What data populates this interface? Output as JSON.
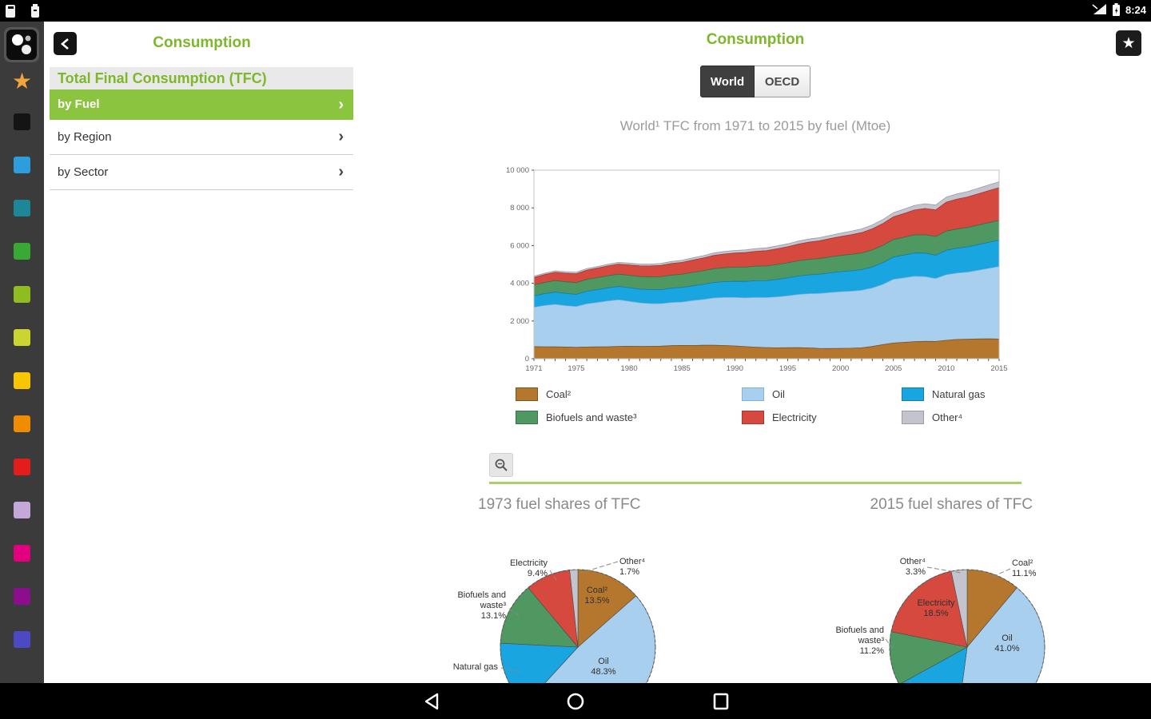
{
  "status_bar": {
    "time": "8:24"
  },
  "nav_rail": {
    "items": [
      {
        "name": "app-icon",
        "kind": "app",
        "color": "#0c0c0c"
      },
      {
        "name": "favorites-star",
        "kind": "star",
        "color": "#f2a33c"
      },
      {
        "name": "shortcut-black",
        "kind": "square",
        "color": "#141414"
      },
      {
        "name": "shortcut-blue",
        "kind": "square",
        "color": "#2d9ddb"
      },
      {
        "name": "shortcut-teal",
        "kind": "square",
        "color": "#1d8798"
      },
      {
        "name": "shortcut-green",
        "kind": "square",
        "color": "#39a935"
      },
      {
        "name": "shortcut-olive",
        "kind": "square",
        "color": "#8fbc20"
      },
      {
        "name": "shortcut-lime",
        "kind": "square",
        "color": "#cbd532"
      },
      {
        "name": "shortcut-yellow",
        "kind": "square",
        "color": "#f7c600"
      },
      {
        "name": "shortcut-orange",
        "kind": "square",
        "color": "#f08c00"
      },
      {
        "name": "shortcut-red",
        "kind": "square",
        "color": "#e51c1c"
      },
      {
        "name": "shortcut-lavender",
        "kind": "square",
        "color": "#c3a8d9"
      },
      {
        "name": "shortcut-magenta",
        "kind": "square",
        "color": "#e2007f"
      },
      {
        "name": "shortcut-purple",
        "kind": "square",
        "color": "#8c0e8c"
      },
      {
        "name": "shortcut-indigo",
        "kind": "square",
        "color": "#4d49c3"
      }
    ]
  },
  "left_panel": {
    "title": "Consumption",
    "section": "Total Final Consumption (TFC)",
    "items": [
      {
        "label": "by Fuel",
        "selected": true
      },
      {
        "label": "by Region",
        "selected": false
      },
      {
        "label": "by Sector",
        "selected": false
      }
    ]
  },
  "main": {
    "title": "Consumption",
    "toggle": {
      "options": [
        "World",
        "OECD"
      ],
      "selected": "World"
    }
  },
  "colors": {
    "accent_green": "#7cb829",
    "selected_row_green": "#8bc53f",
    "divider_green": "#a9d164"
  },
  "chart_data": [
    {
      "type": "area",
      "stacked": true,
      "title": "World¹ TFC from 1971 to 2015 by fuel (Mtoe)",
      "ylabel": "Mtoe",
      "ylim": [
        0,
        10000
      ],
      "yticks": [
        "0",
        "2 000",
        "4 000",
        "6 000",
        "8 000",
        "10 000"
      ],
      "xticks": [
        1971,
        1975,
        1980,
        1985,
        1990,
        1995,
        2000,
        2005,
        2010,
        2015
      ],
      "legend_position": "bottom",
      "x": [
        1971,
        1972,
        1973,
        1974,
        1975,
        1976,
        1977,
        1978,
        1979,
        1980,
        1981,
        1982,
        1983,
        1984,
        1985,
        1986,
        1987,
        1988,
        1989,
        1990,
        1991,
        1992,
        1993,
        1994,
        1995,
        1996,
        1997,
        1998,
        1999,
        2000,
        2001,
        2002,
        2003,
        2004,
        2005,
        2006,
        2007,
        2008,
        2009,
        2010,
        2011,
        2012,
        2013,
        2014,
        2015
      ],
      "series": [
        {
          "id": "coal",
          "name": "Coal²",
          "color": "#b5772e",
          "edge": "#7d5120",
          "values": [
            640,
            632,
            629,
            620,
            600,
            618,
            628,
            632,
            652,
            660,
            650,
            655,
            665,
            690,
            705,
            700,
            710,
            712,
            700,
            680,
            640,
            610,
            590,
            575,
            580,
            585,
            570,
            548,
            540,
            545,
            555,
            575,
            650,
            745,
            830,
            870,
            905,
            920,
            915,
            975,
            1020,
            1030,
            1045,
            1050,
            1042
          ]
        },
        {
          "id": "oil",
          "name": "Oil",
          "color": "#a8d0ee",
          "edge": "#7fb2dc",
          "values": [
            2090,
            2190,
            2251,
            2195,
            2165,
            2290,
            2355,
            2430,
            2470,
            2385,
            2310,
            2270,
            2255,
            2295,
            2300,
            2380,
            2430,
            2510,
            2550,
            2570,
            2590,
            2640,
            2650,
            2705,
            2755,
            2820,
            2880,
            2910,
            2970,
            3005,
            3025,
            3050,
            3100,
            3195,
            3380,
            3420,
            3470,
            3430,
            3340,
            3480,
            3520,
            3560,
            3640,
            3740,
            3847
          ]
        },
        {
          "id": "natural-gas",
          "name": "Natural gas",
          "color": "#19a5e0",
          "edge": "#1180b0",
          "values": [
            604,
            625,
            652,
            648,
            645,
            668,
            680,
            695,
            710,
            720,
            728,
            735,
            742,
            755,
            770,
            785,
            800,
            820,
            835,
            850,
            868,
            885,
            900,
            925,
            950,
            975,
            995,
            1015,
            1040,
            1065,
            1080,
            1095,
            1115,
            1150,
            1180,
            1205,
            1230,
            1250,
            1235,
            1300,
            1320,
            1340,
            1360,
            1380,
            1398
          ]
        },
        {
          "id": "biofuels",
          "name": "Biofuels and waste³",
          "color": "#4f9862",
          "edge": "#37704a",
          "values": [
            580,
            596,
            611,
            618,
            625,
            632,
            639,
            646,
            653,
            660,
            668,
            676,
            684,
            692,
            700,
            710,
            720,
            730,
            740,
            750,
            760,
            770,
            780,
            790,
            800,
            812,
            824,
            836,
            848,
            860,
            874,
            888,
            902,
            916,
            930,
            946,
            962,
            978,
            994,
            1010,
            1018,
            1026,
            1034,
            1042,
            1051
          ]
        },
        {
          "id": "electricity",
          "name": "Electricity",
          "color": "#d6493f",
          "edge": "#a8352e",
          "values": [
            392,
            415,
            438,
            452,
            465,
            482,
            499,
            516,
            533,
            550,
            566,
            582,
            598,
            614,
            630,
            654,
            678,
            702,
            726,
            750,
            770,
            790,
            810,
            830,
            850,
            880,
            910,
            940,
            970,
            1000,
            1040,
            1080,
            1120,
            1160,
            1200,
            1260,
            1320,
            1390,
            1405,
            1536,
            1580,
            1620,
            1660,
            1700,
            1736
          ]
        },
        {
          "id": "other",
          "name": "Other⁴",
          "color": "#c4c4cf",
          "edge": "#9a9aa8",
          "values": [
            75,
            77,
            79,
            82,
            85,
            87,
            89,
            91,
            93,
            95,
            99,
            103,
            107,
            111,
            115,
            120,
            125,
            130,
            135,
            140,
            144,
            148,
            152,
            156,
            160,
            164,
            168,
            172,
            176,
            180,
            189,
            198,
            207,
            216,
            225,
            234,
            243,
            252,
            261,
            270,
            278,
            286,
            294,
            302,
            310
          ]
        }
      ]
    },
    {
      "type": "pie",
      "title": "1973 fuel shares of TFC",
      "slices": [
        {
          "name": "Coal²",
          "value": 13.5,
          "color": "#b5772e",
          "label_lines": [
            "Coal²",
            "13.5%"
          ]
        },
        {
          "name": "Oil",
          "value": 48.3,
          "color": "#a8d0ee",
          "label_lines": [
            "Oil",
            "48.3%"
          ]
        },
        {
          "name": "Natural gas",
          "value": 14.0,
          "color": "#19a5e0",
          "label_lines": [
            "Natural gas"
          ]
        },
        {
          "name": "Biofuels and waste³",
          "value": 13.1,
          "color": "#4f9862",
          "label_lines": [
            "Biofuels and",
            "waste³",
            "13.1%"
          ]
        },
        {
          "name": "Electricity",
          "value": 9.4,
          "color": "#d6493f",
          "label_lines": [
            "Electricity",
            "9.4%"
          ]
        },
        {
          "name": "Other⁴",
          "value": 1.7,
          "color": "#c4c4cf",
          "label_lines": [
            "Other⁴",
            "1.7%"
          ]
        }
      ]
    },
    {
      "type": "pie",
      "title": "2015 fuel shares of TFC",
      "slices": [
        {
          "name": "Coal²",
          "value": 11.1,
          "color": "#b5772e",
          "label_lines": [
            "Coal²",
            "11.1%"
          ]
        },
        {
          "name": "Oil",
          "value": 41.0,
          "color": "#a8d0ee",
          "label_lines": [
            "Oil",
            "41.0%"
          ]
        },
        {
          "name": "Natural gas",
          "value": 14.9,
          "color": "#19a5e0",
          "label_lines": []
        },
        {
          "name": "Biofuels and waste³",
          "value": 11.2,
          "color": "#4f9862",
          "label_lines": [
            "Biofuels and",
            "waste³",
            "11.2%"
          ]
        },
        {
          "name": "Electricity",
          "value": 18.5,
          "color": "#d6493f",
          "label_lines": [
            "Electricity",
            "18.5%"
          ]
        },
        {
          "name": "Other⁴",
          "value": 3.3,
          "color": "#c4c4cf",
          "label_lines": [
            "Other⁴",
            "3.3%"
          ]
        }
      ]
    }
  ]
}
